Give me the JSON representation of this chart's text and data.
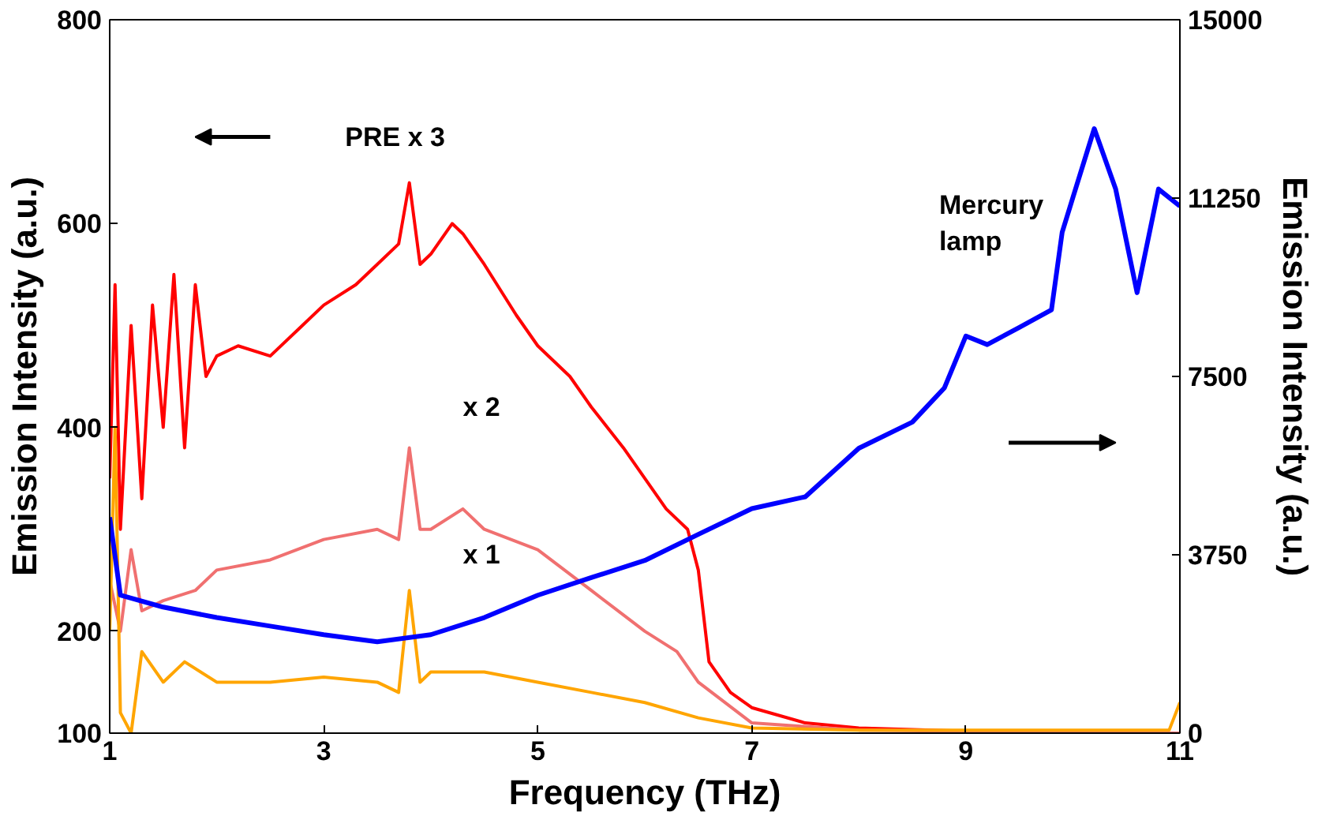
{
  "chart_data": {
    "type": "line",
    "xlabel": "Frequency (THz)",
    "ylabel": "Emission Intensity (a.u.)",
    "y2label": "Emission Intensity (a.u.)",
    "xlim": [
      1,
      11
    ],
    "xticks": [
      1,
      3,
      5,
      7,
      9,
      11
    ],
    "ylim": [
      100,
      800
    ],
    "yticks": [
      100,
      200,
      400,
      600,
      800
    ],
    "y2lim": [
      0,
      15000
    ],
    "y2ticks": [
      0,
      3750,
      7500,
      11250,
      15000
    ],
    "grid": false,
    "annotations": [
      "PRE x 3",
      "x 2",
      "x 1",
      "Mercury\nlamp"
    ],
    "series": [
      {
        "color": "#ff0000",
        "x": [
          1.0,
          1.05,
          1.1,
          1.2,
          1.3,
          1.4,
          1.5,
          1.6,
          1.7,
          1.8,
          1.9,
          2.0,
          2.2,
          2.5,
          2.8,
          3.0,
          3.3,
          3.5,
          3.7,
          3.8,
          3.9,
          4.0,
          4.2,
          4.3,
          4.5,
          4.8,
          5.0,
          5.3,
          5.5,
          5.8,
          6.0,
          6.2,
          6.4,
          6.5,
          6.6,
          6.8,
          7.0,
          7.5,
          8.0,
          9.0,
          10.0,
          11.0
        ],
        "values": [
          350,
          540,
          300,
          500,
          330,
          520,
          400,
          550,
          380,
          540,
          450,
          470,
          480,
          470,
          500,
          520,
          540,
          560,
          580,
          640,
          560,
          570,
          600,
          590,
          560,
          510,
          480,
          450,
          420,
          380,
          350,
          320,
          300,
          260,
          170,
          140,
          125,
          110,
          105,
          102,
          100,
          100
        ]
      },
      {
        "color": "#f07070",
        "x": [
          1.0,
          1.1,
          1.2,
          1.3,
          1.5,
          1.8,
          2.0,
          2.5,
          3.0,
          3.5,
          3.7,
          3.8,
          3.9,
          4.0,
          4.3,
          4.5,
          5.0,
          5.5,
          6.0,
          6.3,
          6.5,
          7.0,
          8.0,
          11.0
        ],
        "values": [
          250,
          200,
          280,
          220,
          230,
          240,
          260,
          270,
          290,
          300,
          290,
          380,
          300,
          300,
          320,
          300,
          280,
          240,
          200,
          180,
          150,
          110,
          103,
          100
        ]
      },
      {
        "color": "#ffa500",
        "x": [
          1.0,
          1.05,
          1.1,
          1.2,
          1.3,
          1.5,
          1.7,
          2.0,
          2.5,
          3.0,
          3.5,
          3.7,
          3.8,
          3.9,
          4.0,
          4.5,
          5.0,
          5.5,
          6.0,
          6.5,
          7.0,
          8.0,
          9.0,
          10.0,
          10.9,
          11.0
        ],
        "values": [
          200,
          400,
          120,
          100,
          180,
          150,
          170,
          150,
          150,
          155,
          150,
          140,
          240,
          150,
          160,
          160,
          150,
          140,
          130,
          115,
          105,
          103,
          103,
          103,
          103,
          130
        ]
      },
      {
        "color": "#0000ff",
        "axis": "y2",
        "x": [
          1.0,
          1.1,
          1.5,
          2.0,
          2.5,
          3.0,
          3.5,
          4.0,
          4.5,
          5.0,
          5.5,
          6.0,
          6.5,
          7.0,
          7.5,
          8.0,
          8.5,
          8.8,
          9.0,
          9.2,
          9.5,
          9.8,
          9.9,
          10.0,
          10.2,
          10.4,
          10.6,
          10.8,
          11.0
        ],
        "values": [
          4540,
          2900,
          2650,
          2430,
          2250,
          2070,
          1920,
          2070,
          2430,
          2900,
          3270,
          3630,
          4180,
          4720,
          4970,
          5990,
          6540,
          7260,
          8350,
          8170,
          8530,
          8900,
          10530,
          11260,
          12710,
          11440,
          9260,
          11440,
          11080
        ]
      }
    ]
  }
}
